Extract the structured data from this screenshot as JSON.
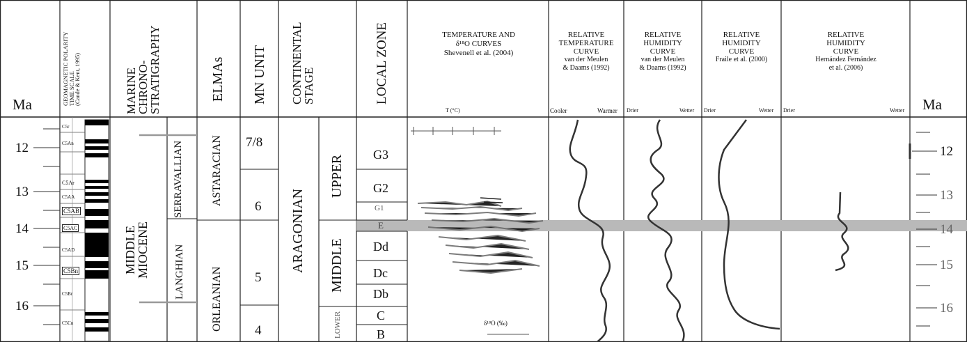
{
  "left_axis": {
    "label": "Ma",
    "ticks": [
      "12",
      "13",
      "14",
      "15",
      "16"
    ]
  },
  "right_axis": {
    "label": "Ma",
    "ticks": [
      "12",
      "13",
      "14",
      "15",
      "16"
    ]
  },
  "columns": {
    "gpts": {
      "header_lines": [
        "GEOMAGNETIC POLARITY",
        "TIME SCALE",
        "(Cande & Kent, 1995)"
      ],
      "chrons": [
        "C5r",
        "C5An",
        "C5Ar",
        "C5AA",
        "C5AB",
        "C5AC",
        "C5AD",
        "C5Bn",
        "C5Br",
        "C5Cn"
      ]
    },
    "marine": {
      "header_lines": [
        "MARINE",
        "CHRONO-",
        "STRATIGRAPHY"
      ],
      "epoch_lines": [
        "MIDDLE",
        "MIOCENE"
      ],
      "stages": [
        "SERRAVALLIAN",
        "LANGHIAN"
      ]
    },
    "elmas": {
      "header": "ELMAs",
      "units": [
        "ASTARACIAN",
        "ORLEANIAN"
      ]
    },
    "mn": {
      "header": "MN UNIT",
      "units": [
        "7/8",
        "6",
        "5",
        "4"
      ]
    },
    "continental": {
      "header_lines": [
        "CONTINENTAL",
        "STAGE"
      ],
      "stage": "ARAGONIAN",
      "sub": [
        "UPPER",
        "MIDDLE",
        "LOWER"
      ]
    },
    "local_zone": {
      "header": "LOCAL ZONE",
      "zones": [
        "G3",
        "G2",
        "G1",
        "E",
        "Dd",
        "Dc",
        "Db",
        "C",
        "B"
      ]
    },
    "temp_curves": {
      "title_lines": [
        "TEMPERATURE AND",
        "δ¹⁸O CURVES",
        "Shevenell et al. (2004)"
      ],
      "t_label": "T (°C)",
      "d18o_label": "δ¹⁸O (‰)"
    },
    "rel_temp": {
      "title_lines": [
        "RELATIVE",
        "TEMPERATURE",
        "CURVE",
        "van der Meulen",
        "& Daams (1992)"
      ],
      "left": "Cooler",
      "right": "Warmer"
    },
    "rel_hum1": {
      "title_lines": [
        "RELATIVE",
        "HUMIDITY",
        "CURVE",
        "van der Meulen",
        "& Daams (1992)"
      ],
      "left": "Drier",
      "right": "Wetter"
    },
    "rel_hum2": {
      "title_lines": [
        "RELATIVE",
        "HUMIDITY",
        "CURVE",
        "Fraile et al. (2000)"
      ],
      "left": "Drier",
      "right": "Wetter"
    },
    "rel_hum3": {
      "title_lines": [
        "RELATIVE",
        "HUMIDITY",
        "CURVE",
        "Hernández Fernández",
        "et al. (2006)"
      ],
      "left": "Drier",
      "right": "Wetter"
    }
  },
  "colors": {
    "band": "#b9b9b9",
    "line": "#222222",
    "fill": "#000000"
  }
}
